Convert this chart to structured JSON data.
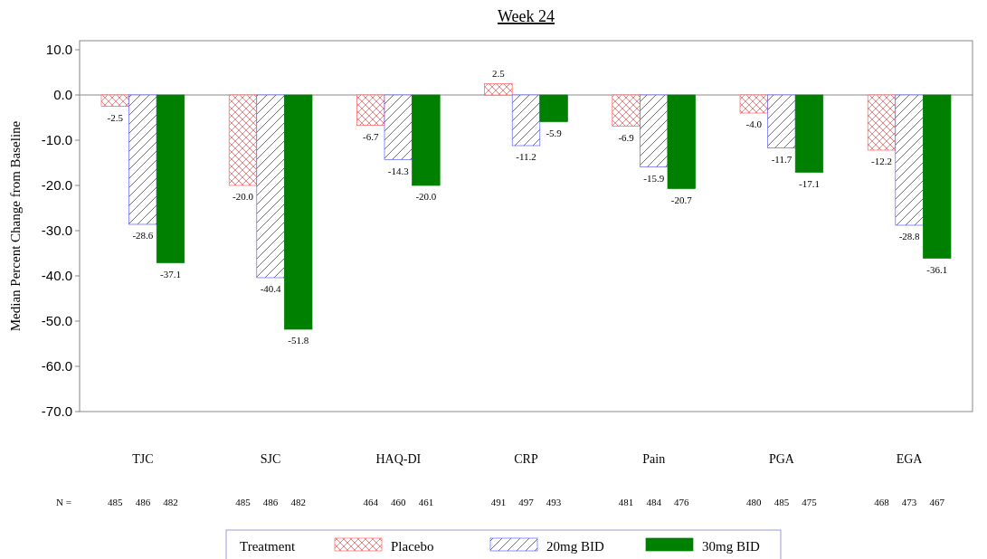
{
  "chart_data": {
    "type": "bar",
    "title": "Week 24",
    "ylabel": "Median Percent Change from Baseline",
    "legend_title": "Treatment",
    "legend": "bottom",
    "categories": [
      "TJC",
      "SJC",
      "HAQ-DI",
      "CRP",
      "Pain",
      "PGA",
      "EGA"
    ],
    "ylim": [
      -70,
      12
    ],
    "yticks": [
      {
        "value": -70,
        "label": "-70.0"
      },
      {
        "value": -60,
        "label": "-60.0"
      },
      {
        "value": -50,
        "label": "-50.0"
      },
      {
        "value": -40,
        "label": "-40.0"
      },
      {
        "value": -30,
        "label": "-30.0"
      },
      {
        "value": -20,
        "label": "-20.0"
      },
      {
        "value": -10,
        "label": "-10.0"
      },
      {
        "value": 0,
        "label": "0.0"
      },
      {
        "value": 10,
        "label": "10.0"
      }
    ],
    "series": [
      {
        "name": "Placebo",
        "color": "#ff6060",
        "values": [
          -2.5,
          -20.0,
          -6.7,
          2.5,
          -6.9,
          -4.0,
          -12.2
        ],
        "value_labels": [
          "-2.5",
          "-20.0",
          "-6.7",
          "2.5",
          "-6.9",
          "-4.0",
          "-12.2"
        ]
      },
      {
        "name": "20mg BID",
        "color": "#6060ff",
        "values": [
          -28.6,
          -40.4,
          -14.3,
          -11.2,
          -15.9,
          -11.7,
          -28.8
        ],
        "value_labels": [
          "-28.6",
          "-40.4",
          "-14.3",
          "-11.2",
          "-15.9",
          "-11.7",
          "-28.8"
        ]
      },
      {
        "name": "30mg BID",
        "color": "#008000",
        "values": [
          -37.1,
          -51.8,
          -20.0,
          -5.9,
          -20.7,
          -17.1,
          -36.1
        ],
        "value_labels": [
          "-37.1",
          "-51.8",
          "-20.0",
          "-5.9",
          "-20.7",
          "-17.1",
          "-36.1"
        ]
      }
    ],
    "annotations": [
      "N =",
      "485",
      "486",
      "482",
      "485",
      "486",
      "482",
      "464",
      "460",
      "461",
      "491",
      "497",
      "493",
      "481",
      "484",
      "476",
      "480",
      "485",
      "475",
      "468",
      "473",
      "467"
    ]
  }
}
